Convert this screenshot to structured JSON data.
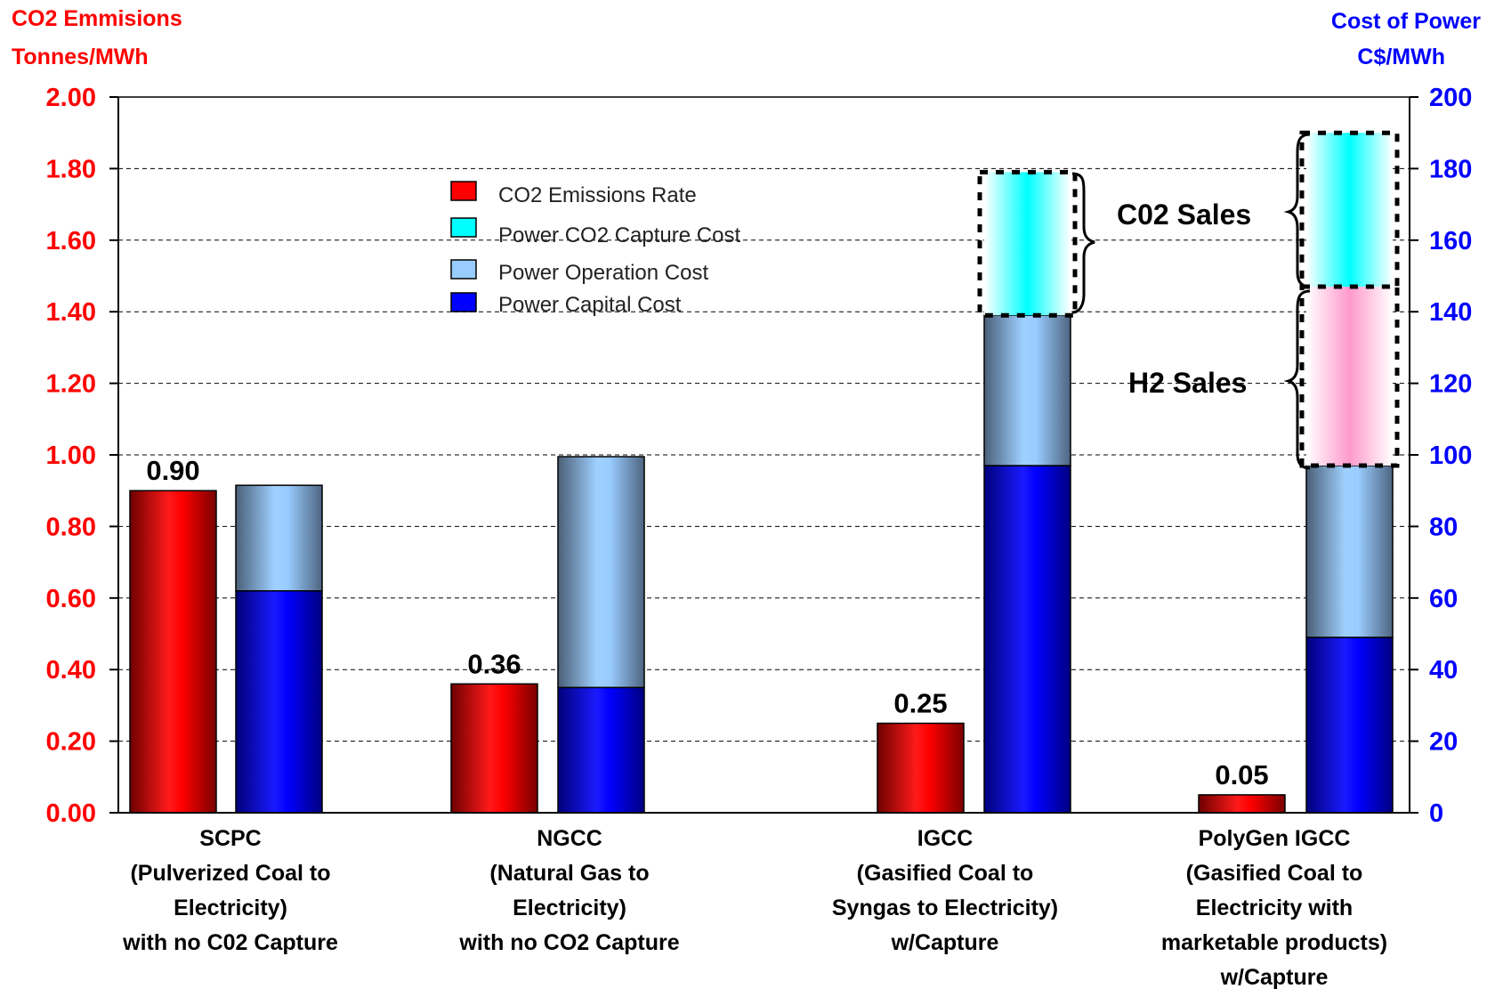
{
  "chart_data": {
    "type": "bar",
    "left_axis": {
      "title_line1": "CO2 Emmisions",
      "title_line2": "Tonnes/MWh",
      "min": 0,
      "max": 2,
      "step": 0.2,
      "tick_labels": [
        "0.00",
        "0.20",
        "0.40",
        "0.60",
        "0.80",
        "1.00",
        "1.20",
        "1.40",
        "1.60",
        "1.80",
        "2.00"
      ],
      "color": "#ff0000"
    },
    "right_axis": {
      "title_line1": "Cost of Power",
      "title_line2": "C$/MWh",
      "min": 0,
      "max": 200,
      "step": 20,
      "tick_labels": [
        "0",
        "20",
        "40",
        "60",
        "80",
        "100",
        "120",
        "140",
        "160",
        "180",
        "200"
      ],
      "color": "#0000ff"
    },
    "grid": "dashed horizontal",
    "categories": [
      {
        "label_lines": [
          "SCPC",
          "(Pulverized Coal to",
          "Electricity)",
          "with no C02 Capture"
        ]
      },
      {
        "label_lines": [
          "NGCC",
          "(Natural Gas to",
          "Electricity)",
          "with no CO2 Capture"
        ]
      },
      {
        "label_lines": [
          "IGCC",
          "(Gasified Coal to",
          "Syngas to Electricity)",
          "w/Capture"
        ]
      },
      {
        "label_lines": [
          "PolyGen IGCC",
          "(Gasified Coal to",
          "Electricity with",
          "marketable products)",
          "w/Capture"
        ]
      }
    ],
    "emissions": {
      "name": "CO2 Emissions Rate",
      "values": [
        0.9,
        0.36,
        0.25,
        0.05
      ],
      "labels": [
        "0.90",
        "0.36",
        "0.25",
        "0.05"
      ],
      "color": "#ff0000"
    },
    "cost_series": [
      {
        "name": "Power Capital Cost",
        "values": [
          62,
          35,
          97,
          49
        ],
        "color": "#0000ff"
      },
      {
        "name": "Power Operation Cost",
        "values": [
          29.5,
          64.5,
          42,
          48
        ],
        "color": "#99ccff"
      },
      {
        "name": "Power CO2 Capture Cost",
        "values": [
          0,
          0,
          40,
          0
        ],
        "color": "#00ffff"
      },
      {
        "name": "H2 Sales",
        "values": [
          0,
          0,
          0,
          50
        ],
        "color": "#ff99cc"
      },
      {
        "name": "CO2 Sales (PolyGen)",
        "values": [
          0,
          0,
          0,
          43
        ],
        "color": "#00ffff"
      }
    ],
    "legend": {
      "placement": "top-center",
      "items": [
        {
          "text": "CO2 Emissions Rate",
          "color": "#ff0000"
        },
        {
          "text": "Power CO2 Capture Cost",
          "color": "#00ffff"
        },
        {
          "text": "Power Operation Cost",
          "color": "#99ccff"
        },
        {
          "text": "Power Capital Cost",
          "color": "#0000ff"
        }
      ]
    },
    "annotations": {
      "co2_sales": "C02 Sales",
      "h2_sales": "H2 Sales"
    }
  }
}
